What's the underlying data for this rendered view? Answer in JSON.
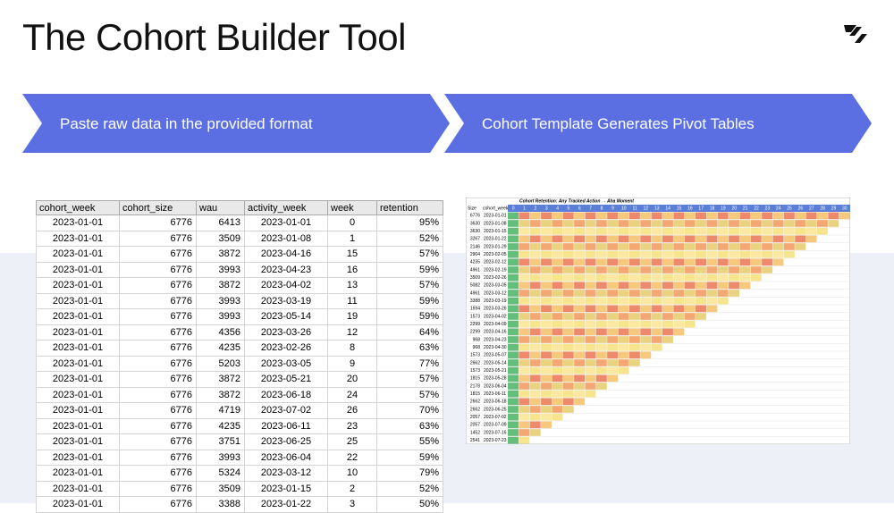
{
  "header": {
    "title": "The Cohort Builder Tool"
  },
  "steps": [
    "Paste raw data in the provided format",
    "Cohort Template Generates Pivot Tables"
  ],
  "table": {
    "columns": [
      "cohort_week",
      "cohort_size",
      "wau",
      "activity_week",
      "week",
      "retention"
    ],
    "rows": [
      [
        "2023-01-01",
        "6776",
        "6413",
        "2023-01-01",
        "0",
        "95%"
      ],
      [
        "2023-01-01",
        "6776",
        "3509",
        "2023-01-08",
        "1",
        "52%"
      ],
      [
        "2023-01-01",
        "6776",
        "3872",
        "2023-04-16",
        "15",
        "57%"
      ],
      [
        "2023-01-01",
        "6776",
        "3993",
        "2023-04-23",
        "16",
        "59%"
      ],
      [
        "2023-01-01",
        "6776",
        "3872",
        "2023-04-02",
        "13",
        "57%"
      ],
      [
        "2023-01-01",
        "6776",
        "3993",
        "2023-03-19",
        "11",
        "59%"
      ],
      [
        "2023-01-01",
        "6776",
        "3993",
        "2023-05-14",
        "19",
        "59%"
      ],
      [
        "2023-01-01",
        "6776",
        "4356",
        "2023-03-26",
        "12",
        "64%"
      ],
      [
        "2023-01-01",
        "6776",
        "4235",
        "2023-02-26",
        "8",
        "63%"
      ],
      [
        "2023-01-01",
        "6776",
        "5203",
        "2023-03-05",
        "9",
        "77%"
      ],
      [
        "2023-01-01",
        "6776",
        "3872",
        "2023-05-21",
        "20",
        "57%"
      ],
      [
        "2023-01-01",
        "6776",
        "3872",
        "2023-06-18",
        "24",
        "57%"
      ],
      [
        "2023-01-01",
        "6776",
        "4719",
        "2023-07-02",
        "26",
        "70%"
      ],
      [
        "2023-01-01",
        "6776",
        "4235",
        "2023-06-11",
        "23",
        "63%"
      ],
      [
        "2023-01-01",
        "6776",
        "3751",
        "2023-06-25",
        "25",
        "55%"
      ],
      [
        "2023-01-01",
        "6776",
        "3993",
        "2023-06-04",
        "22",
        "59%"
      ],
      [
        "2023-01-01",
        "6776",
        "5324",
        "2023-03-12",
        "10",
        "79%"
      ],
      [
        "2023-01-01",
        "6776",
        "3509",
        "2023-01-15",
        "2",
        "52%"
      ],
      [
        "2023-01-01",
        "6776",
        "3388",
        "2023-01-22",
        "3",
        "50%"
      ]
    ]
  },
  "pivot": {
    "title": "Cohort Retention: Any Tracked Action → Aha Moment",
    "header": [
      "Size",
      "cohort_week"
    ],
    "weeks": [
      0,
      1,
      2,
      3,
      4,
      5,
      6,
      7,
      8,
      9,
      10,
      11,
      12,
      13,
      14,
      15,
      16,
      17,
      18,
      19,
      20,
      21,
      22,
      23,
      24,
      25,
      26,
      27,
      28,
      29,
      30
    ],
    "rows": [
      [
        "6776",
        "2023-01-01"
      ],
      [
        "3630",
        "2023-01-08"
      ],
      [
        "3630",
        "2023-01-15"
      ],
      [
        "3267",
        "2023-01-22"
      ],
      [
        "2146",
        "2023-01-29"
      ],
      [
        "2904",
        "2023-02-05"
      ],
      [
        "4235",
        "2023-02-12"
      ],
      [
        "4961",
        "2023-02-19"
      ],
      [
        "3509",
        "2023-02-26"
      ],
      [
        "5082",
        "2023-03-05"
      ],
      [
        "4961",
        "2023-03-12"
      ],
      [
        "3388",
        "2023-03-19"
      ],
      [
        "1694",
        "2023-03-26"
      ],
      [
        "1573",
        "2023-04-02"
      ],
      [
        "2299",
        "2023-04-09"
      ],
      [
        "2299",
        "2023-04-16"
      ],
      [
        "968",
        "2023-04-23"
      ],
      [
        "968",
        "2023-04-30"
      ],
      [
        "1573",
        "2023-05-07"
      ],
      [
        "2662",
        "2023-05-14"
      ],
      [
        "1573",
        "2023-05-21"
      ],
      [
        "1815",
        "2023-05-28"
      ],
      [
        "2178",
        "2023-06-04"
      ],
      [
        "1815",
        "2023-06-11"
      ],
      [
        "2662",
        "2023-06-18"
      ],
      [
        "2662",
        "2023-06-25"
      ],
      [
        "2057",
        "2023-07-02"
      ],
      [
        "2057",
        "2023-07-09"
      ],
      [
        "1452",
        "2023-07-16"
      ],
      [
        "2541",
        "2023-07-23"
      ]
    ]
  }
}
